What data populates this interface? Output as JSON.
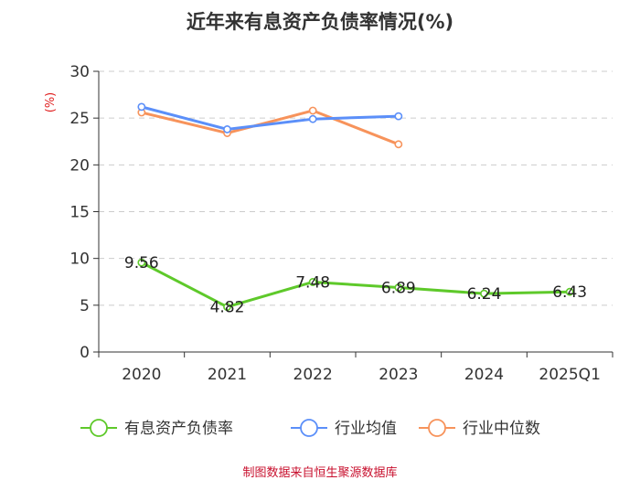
{
  "chart_data": {
    "type": "line",
    "title": "近年来有息资产负债率情况(%)",
    "ylabel": "(%)",
    "ylim": [
      0,
      30
    ],
    "yticks": [
      0,
      5,
      10,
      15,
      20,
      25,
      30
    ],
    "categories": [
      "2020",
      "2021",
      "2022",
      "2023",
      "2024",
      "2025Q1"
    ],
    "series": [
      {
        "name": "有息资产负债率",
        "color": "#5ec92a",
        "values": [
          9.56,
          4.82,
          7.48,
          6.89,
          6.24,
          6.43
        ],
        "labels": [
          "9.56",
          "4.82",
          "7.48",
          "6.89",
          "6.24",
          "6.43"
        ]
      },
      {
        "name": "行业均值",
        "color": "#5b8ff9",
        "values": [
          26.2,
          23.8,
          24.9,
          25.2,
          null,
          null
        ]
      },
      {
        "name": "行业中位数",
        "color": "#f7935b",
        "values": [
          25.6,
          23.4,
          25.8,
          22.2,
          null,
          null
        ]
      }
    ],
    "legend_position": "bottom",
    "grid": true
  },
  "source": "制图数据来自恒生聚源数据库",
  "colors": {
    "axis": "#333333",
    "grid": "#cccccc",
    "ylabel": "#e02020"
  }
}
